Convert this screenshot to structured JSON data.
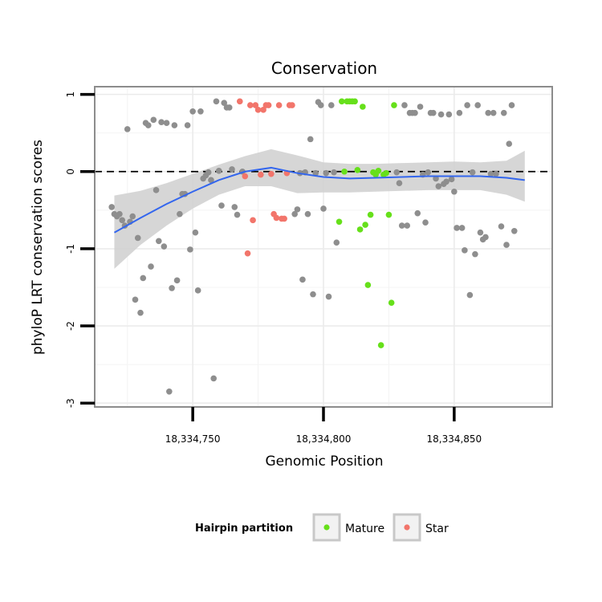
{
  "chart_data": {
    "type": "scatter",
    "title": "Conservation",
    "xlabel": "Genomic Position",
    "ylabel": "phyloP LRT conservation scores",
    "xlim": [
      18334712.5,
      18334887.5
    ],
    "ylim": [
      -3.05,
      1.1
    ],
    "x_ticks": [
      {
        "value": 18334750,
        "label": "18,334,750"
      },
      {
        "value": 18334800,
        "label": "18,334,800"
      },
      {
        "value": 18334850,
        "label": "18,334,850"
      }
    ],
    "y_ticks": [
      {
        "value": 1,
        "label": "1"
      },
      {
        "value": 0,
        "label": "0"
      },
      {
        "value": -1,
        "label": "-1"
      },
      {
        "value": -2,
        "label": "-2"
      },
      {
        "value": -3,
        "label": "-3"
      }
    ],
    "reference_line": {
      "y": 0,
      "style": "dashed"
    },
    "legend": {
      "title": "Hairpin partition",
      "position": "bottom",
      "entries": [
        {
          "label": "Mature",
          "color": "#66e01a"
        },
        {
          "label": "Star",
          "color": "#f2756b"
        }
      ]
    },
    "colors": {
      "other": "#8e8e8e",
      "Mature": "#66e01a",
      "Star": "#f2756b",
      "smooth": "#3366ee",
      "ribbon": "#d2d2d2"
    },
    "smooth_curve": [
      {
        "x": 18334720,
        "y": -0.79,
        "lo": -1.26,
        "hi": -0.31
      },
      {
        "x": 18334730,
        "y": -0.6,
        "lo": -0.95,
        "hi": -0.25
      },
      {
        "x": 18334740,
        "y": -0.42,
        "lo": -0.7,
        "hi": -0.15
      },
      {
        "x": 18334750,
        "y": -0.26,
        "lo": -0.48,
        "hi": -0.03
      },
      {
        "x": 18334760,
        "y": -0.11,
        "lo": -0.3,
        "hi": 0.09
      },
      {
        "x": 18334770,
        "y": 0.0,
        "lo": -0.19,
        "hi": 0.2
      },
      {
        "x": 18334780,
        "y": 0.05,
        "lo": -0.19,
        "hi": 0.29
      },
      {
        "x": 18334790,
        "y": -0.02,
        "lo": -0.28,
        "hi": 0.21
      },
      {
        "x": 18334800,
        "y": -0.07,
        "lo": -0.27,
        "hi": 0.12
      },
      {
        "x": 18334810,
        "y": -0.09,
        "lo": -0.27,
        "hi": 0.1
      },
      {
        "x": 18334820,
        "y": -0.08,
        "lo": -0.26,
        "hi": 0.1
      },
      {
        "x": 18334830,
        "y": -0.07,
        "lo": -0.25,
        "hi": 0.11
      },
      {
        "x": 18334840,
        "y": -0.06,
        "lo": -0.24,
        "hi": 0.12
      },
      {
        "x": 18334850,
        "y": -0.06,
        "lo": -0.24,
        "hi": 0.13
      },
      {
        "x": 18334860,
        "y": -0.06,
        "lo": -0.24,
        "hi": 0.12
      },
      {
        "x": 18334870,
        "y": -0.08,
        "lo": -0.3,
        "hi": 0.14
      },
      {
        "x": 18334877,
        "y": -0.11,
        "lo": -0.39,
        "hi": 0.27
      }
    ],
    "points": [
      {
        "x": 18334719,
        "y": -0.46,
        "group": "other"
      },
      {
        "x": 18334720,
        "y": -0.55,
        "group": "other"
      },
      {
        "x": 18334721,
        "y": -0.58,
        "group": "other"
      },
      {
        "x": 18334722,
        "y": -0.55,
        "group": "other"
      },
      {
        "x": 18334723,
        "y": -0.63,
        "group": "other"
      },
      {
        "x": 18334724,
        "y": -0.7,
        "group": "other"
      },
      {
        "x": 18334725,
        "y": 0.55,
        "group": "other"
      },
      {
        "x": 18334726,
        "y": -0.65,
        "group": "other"
      },
      {
        "x": 18334727,
        "y": -0.58,
        "group": "other"
      },
      {
        "x": 18334728,
        "y": -1.66,
        "group": "other"
      },
      {
        "x": 18334729,
        "y": -0.86,
        "group": "other"
      },
      {
        "x": 18334730,
        "y": -1.83,
        "group": "other"
      },
      {
        "x": 18334731,
        "y": -1.38,
        "group": "other"
      },
      {
        "x": 18334732,
        "y": 0.63,
        "group": "other"
      },
      {
        "x": 18334733,
        "y": 0.6,
        "group": "other"
      },
      {
        "x": 18334734,
        "y": -1.23,
        "group": "other"
      },
      {
        "x": 18334735,
        "y": 0.67,
        "group": "other"
      },
      {
        "x": 18334736,
        "y": -0.24,
        "group": "other"
      },
      {
        "x": 18334737,
        "y": -0.9,
        "group": "other"
      },
      {
        "x": 18334738,
        "y": 0.64,
        "group": "other"
      },
      {
        "x": 18334739,
        "y": -0.97,
        "group": "other"
      },
      {
        "x": 18334740,
        "y": 0.63,
        "group": "other"
      },
      {
        "x": 18334741,
        "y": -2.85,
        "group": "other"
      },
      {
        "x": 18334742,
        "y": -1.51,
        "group": "other"
      },
      {
        "x": 18334743,
        "y": 0.6,
        "group": "other"
      },
      {
        "x": 18334744,
        "y": -1.41,
        "group": "other"
      },
      {
        "x": 18334745,
        "y": -0.55,
        "group": "other"
      },
      {
        "x": 18334746,
        "y": -0.29,
        "group": "other"
      },
      {
        "x": 18334747,
        "y": -0.29,
        "group": "other"
      },
      {
        "x": 18334748,
        "y": 0.6,
        "group": "other"
      },
      {
        "x": 18334749,
        "y": -1.01,
        "group": "other"
      },
      {
        "x": 18334750,
        "y": 0.78,
        "group": "other"
      },
      {
        "x": 18334751,
        "y": -0.79,
        "group": "other"
      },
      {
        "x": 18334752,
        "y": -1.54,
        "group": "other"
      },
      {
        "x": 18334753,
        "y": 0.78,
        "group": "other"
      },
      {
        "x": 18334754,
        "y": -0.09,
        "group": "other"
      },
      {
        "x": 18334755,
        "y": -0.05,
        "group": "other"
      },
      {
        "x": 18334756,
        "y": -0.01,
        "group": "other"
      },
      {
        "x": 18334757,
        "y": -0.11,
        "group": "other"
      },
      {
        "x": 18334758,
        "y": -2.68,
        "group": "other"
      },
      {
        "x": 18334759,
        "y": 0.91,
        "group": "other"
      },
      {
        "x": 18334760,
        "y": 0.01,
        "group": "other"
      },
      {
        "x": 18334761,
        "y": -0.44,
        "group": "other"
      },
      {
        "x": 18334762,
        "y": 0.89,
        "group": "other"
      },
      {
        "x": 18334763,
        "y": 0.83,
        "group": "other"
      },
      {
        "x": 18334764,
        "y": 0.83,
        "group": "other"
      },
      {
        "x": 18334765,
        "y": 0.03,
        "group": "other"
      },
      {
        "x": 18334766,
        "y": -0.46,
        "group": "other"
      },
      {
        "x": 18334767,
        "y": -0.56,
        "group": "other"
      },
      {
        "x": 18334768,
        "y": 0.91,
        "group": "Star"
      },
      {
        "x": 18334769,
        "y": 0.0,
        "group": "other"
      },
      {
        "x": 18334770,
        "y": -0.06,
        "group": "Star"
      },
      {
        "x": 18334771,
        "y": -1.06,
        "group": "Star"
      },
      {
        "x": 18334772,
        "y": 0.86,
        "group": "Star"
      },
      {
        "x": 18334773,
        "y": -0.63,
        "group": "Star"
      },
      {
        "x": 18334774,
        "y": 0.86,
        "group": "Star"
      },
      {
        "x": 18334775,
        "y": 0.8,
        "group": "Star"
      },
      {
        "x": 18334776,
        "y": -0.04,
        "group": "Star"
      },
      {
        "x": 18334777,
        "y": 0.8,
        "group": "Star"
      },
      {
        "x": 18334778,
        "y": 0.86,
        "group": "Star"
      },
      {
        "x": 18334779,
        "y": 0.86,
        "group": "Star"
      },
      {
        "x": 18334780,
        "y": -0.03,
        "group": "Star"
      },
      {
        "x": 18334781,
        "y": -0.55,
        "group": "Star"
      },
      {
        "x": 18334782,
        "y": -0.6,
        "group": "Star"
      },
      {
        "x": 18334783,
        "y": 0.86,
        "group": "Star"
      },
      {
        "x": 18334784,
        "y": -0.61,
        "group": "Star"
      },
      {
        "x": 18334785,
        "y": -0.61,
        "group": "Star"
      },
      {
        "x": 18334786,
        "y": -0.02,
        "group": "Star"
      },
      {
        "x": 18334787,
        "y": 0.86,
        "group": "Star"
      },
      {
        "x": 18334788,
        "y": 0.86,
        "group": "Star"
      },
      {
        "x": 18334789,
        "y": -0.55,
        "group": "other"
      },
      {
        "x": 18334790,
        "y": -0.49,
        "group": "other"
      },
      {
        "x": 18334791,
        "y": -0.02,
        "group": "other"
      },
      {
        "x": 18334792,
        "y": -1.4,
        "group": "other"
      },
      {
        "x": 18334793,
        "y": -0.01,
        "group": "other"
      },
      {
        "x": 18334794,
        "y": -0.55,
        "group": "other"
      },
      {
        "x": 18334795,
        "y": 0.42,
        "group": "other"
      },
      {
        "x": 18334796,
        "y": -1.59,
        "group": "other"
      },
      {
        "x": 18334797,
        "y": -0.02,
        "group": "other"
      },
      {
        "x": 18334798,
        "y": 0.9,
        "group": "other"
      },
      {
        "x": 18334799,
        "y": 0.86,
        "group": "other"
      },
      {
        "x": 18334800,
        "y": -0.48,
        "group": "other"
      },
      {
        "x": 18334801,
        "y": -0.02,
        "group": "other"
      },
      {
        "x": 18334802,
        "y": -1.62,
        "group": "other"
      },
      {
        "x": 18334803,
        "y": 0.86,
        "group": "other"
      },
      {
        "x": 18334804,
        "y": -0.01,
        "group": "other"
      },
      {
        "x": 18334805,
        "y": -0.92,
        "group": "other"
      },
      {
        "x": 18334806,
        "y": -0.65,
        "group": "Mature"
      },
      {
        "x": 18334807,
        "y": 0.91,
        "group": "Mature"
      },
      {
        "x": 18334808,
        "y": 0.0,
        "group": "Mature"
      },
      {
        "x": 18334809,
        "y": 0.91,
        "group": "Mature"
      },
      {
        "x": 18334810,
        "y": 0.91,
        "group": "Mature"
      },
      {
        "x": 18334811,
        "y": 0.91,
        "group": "Mature"
      },
      {
        "x": 18334812,
        "y": 0.91,
        "group": "Mature"
      },
      {
        "x": 18334813,
        "y": 0.02,
        "group": "Mature"
      },
      {
        "x": 18334814,
        "y": -0.75,
        "group": "Mature"
      },
      {
        "x": 18334815,
        "y": 0.84,
        "group": "Mature"
      },
      {
        "x": 18334816,
        "y": -0.69,
        "group": "Mature"
      },
      {
        "x": 18334817,
        "y": -1.47,
        "group": "Mature"
      },
      {
        "x": 18334818,
        "y": -0.56,
        "group": "Mature"
      },
      {
        "x": 18334819,
        "y": -0.01,
        "group": "Mature"
      },
      {
        "x": 18334820,
        "y": -0.04,
        "group": "Mature"
      },
      {
        "x": 18334821,
        "y": 0.01,
        "group": "Mature"
      },
      {
        "x": 18334822,
        "y": -2.25,
        "group": "Mature"
      },
      {
        "x": 18334823,
        "y": -0.04,
        "group": "Mature"
      },
      {
        "x": 18334824,
        "y": -0.02,
        "group": "Mature"
      },
      {
        "x": 18334825,
        "y": -0.56,
        "group": "Mature"
      },
      {
        "x": 18334826,
        "y": -1.7,
        "group": "Mature"
      },
      {
        "x": 18334827,
        "y": 0.86,
        "group": "Mature"
      },
      {
        "x": 18334828,
        "y": -0.01,
        "group": "other"
      },
      {
        "x": 18334829,
        "y": -0.15,
        "group": "other"
      },
      {
        "x": 18334830,
        "y": -0.7,
        "group": "other"
      },
      {
        "x": 18334831,
        "y": 0.86,
        "group": "other"
      },
      {
        "x": 18334832,
        "y": -0.7,
        "group": "other"
      },
      {
        "x": 18334833,
        "y": 0.76,
        "group": "other"
      },
      {
        "x": 18334834,
        "y": 0.76,
        "group": "other"
      },
      {
        "x": 18334835,
        "y": 0.76,
        "group": "other"
      },
      {
        "x": 18334836,
        "y": -0.54,
        "group": "other"
      },
      {
        "x": 18334837,
        "y": 0.84,
        "group": "other"
      },
      {
        "x": 18334838,
        "y": -0.04,
        "group": "other"
      },
      {
        "x": 18334839,
        "y": -0.66,
        "group": "other"
      },
      {
        "x": 18334840,
        "y": -0.01,
        "group": "other"
      },
      {
        "x": 18334841,
        "y": 0.76,
        "group": "other"
      },
      {
        "x": 18334842,
        "y": 0.76,
        "group": "other"
      },
      {
        "x": 18334843,
        "y": -0.09,
        "group": "other"
      },
      {
        "x": 18334844,
        "y": -0.19,
        "group": "other"
      },
      {
        "x": 18334845,
        "y": 0.74,
        "group": "other"
      },
      {
        "x": 18334846,
        "y": -0.16,
        "group": "other"
      },
      {
        "x": 18334847,
        "y": -0.13,
        "group": "other"
      },
      {
        "x": 18334848,
        "y": 0.74,
        "group": "other"
      },
      {
        "x": 18334849,
        "y": -0.1,
        "group": "other"
      },
      {
        "x": 18334850,
        "y": -0.26,
        "group": "other"
      },
      {
        "x": 18334851,
        "y": -0.73,
        "group": "other"
      },
      {
        "x": 18334852,
        "y": 0.76,
        "group": "other"
      },
      {
        "x": 18334853,
        "y": -0.73,
        "group": "other"
      },
      {
        "x": 18334854,
        "y": -1.02,
        "group": "other"
      },
      {
        "x": 18334855,
        "y": 0.86,
        "group": "other"
      },
      {
        "x": 18334856,
        "y": -1.6,
        "group": "other"
      },
      {
        "x": 18334857,
        "y": -0.01,
        "group": "other"
      },
      {
        "x": 18334858,
        "y": -1.07,
        "group": "other"
      },
      {
        "x": 18334859,
        "y": 0.86,
        "group": "other"
      },
      {
        "x": 18334860,
        "y": -0.79,
        "group": "other"
      },
      {
        "x": 18334861,
        "y": -0.88,
        "group": "other"
      },
      {
        "x": 18334862,
        "y": -0.85,
        "group": "other"
      },
      {
        "x": 18334863,
        "y": 0.76,
        "group": "other"
      },
      {
        "x": 18334864,
        "y": -0.03,
        "group": "other"
      },
      {
        "x": 18334865,
        "y": 0.76,
        "group": "other"
      },
      {
        "x": 18334866,
        "y": -0.03,
        "group": "other"
      },
      {
        "x": 18334868,
        "y": -0.71,
        "group": "other"
      },
      {
        "x": 18334869,
        "y": 0.76,
        "group": "other"
      },
      {
        "x": 18334870,
        "y": -0.95,
        "group": "other"
      },
      {
        "x": 18334871,
        "y": 0.36,
        "group": "other"
      },
      {
        "x": 18334872,
        "y": 0.86,
        "group": "other"
      },
      {
        "x": 18334873,
        "y": -0.77,
        "group": "other"
      }
    ]
  }
}
